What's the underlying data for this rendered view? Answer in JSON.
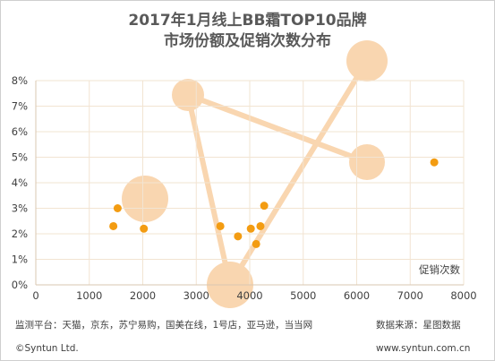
{
  "title": {
    "line1": "2017年1月线上BB霜TOP10品牌",
    "line2": "市场份额及促销次数分布"
  },
  "footer": {
    "monitor": "监测平台：天猫，京东，苏宁易购，国美在线，1号店，亚马逊，当当网",
    "source": "数据来源：星图数据",
    "copyright": "©Syntun Ltd.",
    "website": "www.syntun.com.cn"
  },
  "colors": {
    "accent": "#f39c12",
    "decor": "#f9d6b0",
    "grid": "#f2e4d2",
    "title": "#595959"
  },
  "chart_data": {
    "type": "scatter",
    "xlabel": "促销次数",
    "ylabel": "",
    "xlim": [
      0,
      8000
    ],
    "ylim": [
      0,
      0.08
    ],
    "xticks": [
      0,
      1000,
      2000,
      3000,
      4000,
      5000,
      6000,
      7000,
      8000
    ],
    "yticks": [
      "0%",
      "1%",
      "2%",
      "3%",
      "4%",
      "5%",
      "6%",
      "7%",
      "8%"
    ],
    "grid": true,
    "points": [
      {
        "x": 1450,
        "y": 0.023
      },
      {
        "x": 1530,
        "y": 0.03
      },
      {
        "x": 2020,
        "y": 0.022
      },
      {
        "x": 3450,
        "y": 0.023
      },
      {
        "x": 3780,
        "y": 0.019
      },
      {
        "x": 4020,
        "y": 0.022
      },
      {
        "x": 4120,
        "y": 0.016
      },
      {
        "x": 4200,
        "y": 0.023
      },
      {
        "x": 4270,
        "y": 0.031
      },
      {
        "x": 7450,
        "y": 0.048
      }
    ]
  }
}
